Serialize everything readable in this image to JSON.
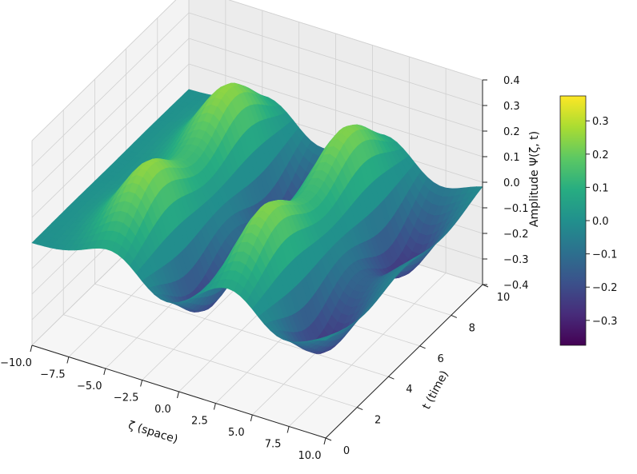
{
  "chart_data": {
    "type": "surface3d",
    "colormap": "viridis",
    "xlabel": "ζ (space)",
    "ylabel": "t (time)",
    "zlabel": "Amplitude Ψ(ζ, t)",
    "xlim": [
      -10,
      10
    ],
    "ylim": [
      0,
      10
    ],
    "zlim": [
      -0.4,
      0.4
    ],
    "x_ticks": [
      "−10.0",
      "−7.5",
      "−5.0",
      "−2.5",
      "0.0",
      "2.5",
      "5.0",
      "7.5",
      "10.0"
    ],
    "y_ticks": [
      "0",
      "2",
      "4",
      "6",
      "8",
      "10"
    ],
    "z_ticks": [
      "−0.4",
      "−0.3",
      "−0.2",
      "−0.1",
      "0.0",
      "0.1",
      "0.2",
      "0.3",
      "0.4"
    ],
    "colorbar_ticks": [
      "0.3",
      "0.2",
      "0.1",
      "0.0",
      "−0.1",
      "−0.2",
      "−0.3"
    ],
    "colorbar_range": [
      -0.375,
      0.375
    ],
    "grid": true,
    "surface_features": [
      {
        "zeta": -4.0,
        "t": 2.5,
        "amplitude": 0.36
      },
      {
        "zeta": 4.0,
        "t": 2.5,
        "amplitude": 0.36
      },
      {
        "zeta": -4.0,
        "t": 7.5,
        "amplitude": 0.36
      },
      {
        "zeta": 4.0,
        "t": 7.5,
        "amplitude": 0.36
      },
      {
        "zeta": -1.5,
        "t": 2.5,
        "amplitude": -0.36
      },
      {
        "zeta": 6.5,
        "t": 2.5,
        "amplitude": -0.36
      },
      {
        "zeta": -1.5,
        "t": 7.5,
        "amplitude": -0.36
      },
      {
        "zeta": 6.5,
        "t": 7.5,
        "amplitude": -0.36
      }
    ]
  }
}
